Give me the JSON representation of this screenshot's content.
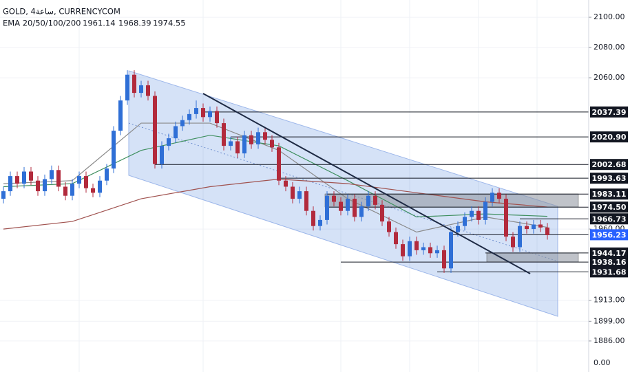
{
  "chart_data": {
    "type": "candlestick",
    "title": "GOLD, 4ساعة, CURRENCYCOM",
    "ema_label": "EMA 20/50/100/200",
    "up_color": "#2f6fd6",
    "down_color": "#b22a3c",
    "ylim": [
      1865.5,
      2111.4
    ],
    "yticks": [
      {
        "value": 2100,
        "label": "2100.00"
      },
      {
        "value": 2080,
        "label": "2080.00"
      },
      {
        "value": 2060,
        "label": "2060.00"
      },
      {
        "value": 1960,
        "label": "1960.00"
      },
      {
        "value": 1913,
        "label": "1913.00"
      },
      {
        "value": 1899,
        "label": "1899.00"
      },
      {
        "value": 1886,
        "label": "1886.00"
      }
    ],
    "bottom_label": "0.00",
    "ohlc": [
      [
        1980,
        1988,
        1977,
        1985
      ],
      [
        1985,
        1998,
        1982,
        1995
      ],
      [
        1995,
        1998,
        1987,
        1990
      ],
      [
        1990,
        2001,
        1987,
        1998
      ],
      [
        1998,
        2001,
        1989,
        1992
      ],
      [
        1992,
        1995,
        1982,
        1985
      ],
      [
        1985,
        1996,
        1982,
        1993
      ],
      [
        1993,
        2002,
        1990,
        1999
      ],
      [
        1999,
        2002,
        1985,
        1988
      ],
      [
        1988,
        1991,
        1979,
        1982
      ],
      [
        1982,
        1993,
        1979,
        1990
      ],
      [
        1990,
        1998,
        1987,
        1995
      ],
      [
        1995,
        1998,
        1984,
        1987
      ],
      [
        1987,
        1990,
        1981,
        1984
      ],
      [
        1984,
        1995,
        1981,
        1992
      ],
      [
        1992,
        2003,
        1989,
        2000
      ],
      [
        2000,
        2028,
        1997,
        2025
      ],
      [
        2025,
        2048,
        2022,
        2045
      ],
      [
        2045,
        2065,
        2042,
        2062
      ],
      [
        2062,
        2065,
        2047,
        2050
      ],
      [
        2050,
        2058,
        2047,
        2055
      ],
      [
        2055,
        2058,
        2045,
        2048
      ],
      [
        2048,
        2051,
        2000,
        2003
      ],
      [
        2003,
        2018,
        2000,
        2015
      ],
      [
        2015,
        2023,
        2012,
        2020
      ],
      [
        2020,
        2031,
        2017,
        2028
      ],
      [
        2028,
        2035,
        2025,
        2032
      ],
      [
        2032,
        2039,
        2029,
        2036
      ],
      [
        2036,
        2045,
        2033,
        2040
      ],
      [
        2040,
        2043,
        2031,
        2034
      ],
      [
        2034,
        2041,
        2031,
        2038
      ],
      [
        2038,
        2041,
        2027,
        2030
      ],
      [
        2030,
        2033,
        2012,
        2015
      ],
      [
        2015,
        2021,
        2012,
        2018
      ],
      [
        2018,
        2021,
        2007,
        2010
      ],
      [
        2010,
        2025,
        2007,
        2022
      ],
      [
        2022,
        2025,
        2013,
        2016
      ],
      [
        2016,
        2027,
        2013,
        2024
      ],
      [
        2024,
        2027,
        2016,
        2019
      ],
      [
        2019,
        2022,
        2011,
        2014
      ],
      [
        2014,
        2017,
        1989,
        1992
      ],
      [
        1992,
        1995,
        1985,
        1988
      ],
      [
        1988,
        1991,
        1977,
        1980
      ],
      [
        1980,
        1988,
        1977,
        1985
      ],
      [
        1985,
        1988,
        1969,
        1972
      ],
      [
        1972,
        1975,
        1959,
        1962
      ],
      [
        1962,
        1969,
        1959,
        1966
      ],
      [
        1966,
        1985,
        1963,
        1982
      ],
      [
        1982,
        1985,
        1975,
        1978
      ],
      [
        1978,
        1981,
        1969,
        1972
      ],
      [
        1972,
        1983,
        1969,
        1980
      ],
      [
        1980,
        1983,
        1965,
        1968
      ],
      [
        1968,
        1978,
        1965,
        1975
      ],
      [
        1975,
        1985,
        1972,
        1982
      ],
      [
        1982,
        1985,
        1973,
        1976
      ],
      [
        1976,
        1979,
        1962,
        1965
      ],
      [
        1965,
        1968,
        1955,
        1958
      ],
      [
        1958,
        1961,
        1947,
        1950
      ],
      [
        1950,
        1953,
        1939,
        1942
      ],
      [
        1942,
        1955,
        1939,
        1952
      ],
      [
        1952,
        1955,
        1943,
        1946
      ],
      [
        1946,
        1951,
        1943,
        1948
      ],
      [
        1948,
        1951,
        1941,
        1944
      ],
      [
        1944,
        1949,
        1941,
        1946
      ],
      [
        1946,
        1949,
        1931,
        1934
      ],
      [
        1934,
        1961,
        1931,
        1958
      ],
      [
        1958,
        1965,
        1955,
        1962
      ],
      [
        1962,
        1971,
        1959,
        1968
      ],
      [
        1968,
        1975,
        1965,
        1972
      ],
      [
        1972,
        1975,
        1963,
        1966
      ],
      [
        1966,
        1981,
        1963,
        1978
      ],
      [
        1978,
        1987,
        1975,
        1984
      ],
      [
        1984,
        1987,
        1977,
        1980
      ],
      [
        1980,
        1983,
        1952,
        1955
      ],
      [
        1955,
        1958,
        1945,
        1948
      ],
      [
        1948,
        1965,
        1945,
        1962
      ],
      [
        1962,
        1965,
        1957,
        1960
      ],
      [
        1960,
        1966,
        1957,
        1963
      ],
      [
        1963,
        1966,
        1958,
        1961
      ],
      [
        1961,
        1964,
        1953,
        1956
      ]
    ],
    "ema": {
      "x": [
        0,
        10,
        20,
        30,
        40,
        50,
        60,
        70,
        79
      ],
      "series": [
        {
          "color": "#8a8a8a",
          "values": [
            1990,
            1992,
            2030,
            2030,
            2012,
            1980,
            1958,
            1968,
            1961.14
          ]
        },
        {
          "color": "#3f8f5f",
          "values": [
            1988,
            1990,
            2012,
            2022,
            2015,
            1992,
            1968,
            1970,
            1968.39
          ]
        },
        {
          "color": "#a0524f",
          "values": [
            1960,
            1965,
            1980,
            1988,
            1993,
            1990,
            1984,
            1978,
            1974.55
          ]
        }
      ]
    },
    "levels": [
      {
        "value": 2037.39,
        "label": "2037.39",
        "from": 29
      },
      {
        "value": 2020.9,
        "label": "2020.90",
        "from": 33
      },
      {
        "value": 2002.68,
        "label": "2002.68",
        "from": 22
      },
      {
        "value": 1993.63,
        "label": "1993.63",
        "from": 40
      },
      {
        "value": 1983.11,
        "label": "1983.11",
        "from": 47
      },
      {
        "value": 1974.5,
        "label": "1974.50",
        "from": 47
      },
      {
        "value": 1966.73,
        "label": "1966.73",
        "from": 75
      },
      {
        "value": 1944.17,
        "label": "1944.17",
        "from": 70
      },
      {
        "value": 1938.16,
        "label": "1938.16",
        "from": 49
      },
      {
        "value": 1931.68,
        "label": "1931.68",
        "from": 63
      }
    ],
    "current": {
      "value": 1956.23,
      "label": "1956.23",
      "color": "#2962ff",
      "from": 65
    }
  }
}
